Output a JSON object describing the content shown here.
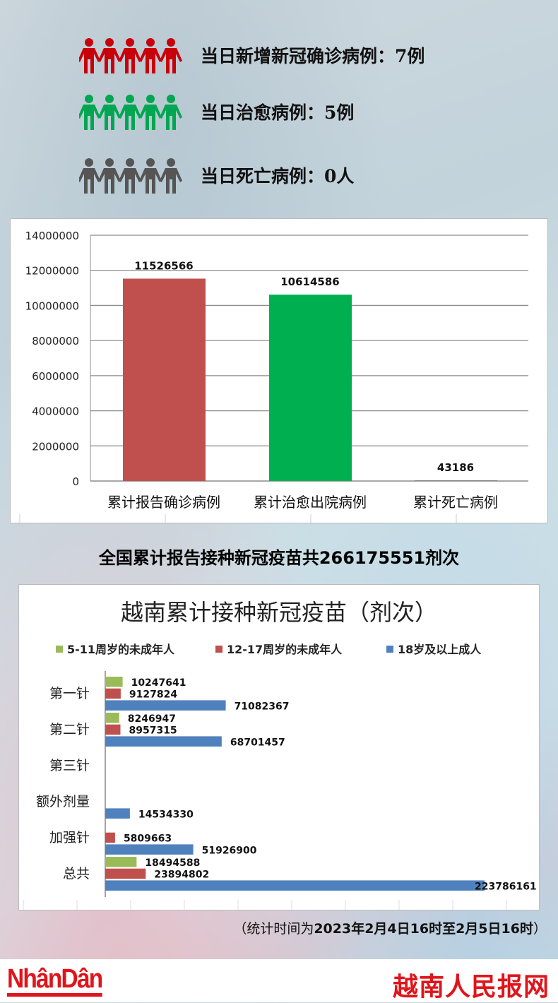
{
  "daily": [
    {
      "label": "当日新增新冠确诊病例：7例",
      "color": "#c8000a",
      "icon": "person-group-icon"
    },
    {
      "label": "当日治愈病例：5例",
      "color": "#00a651",
      "icon": "person-group-icon"
    },
    {
      "label": "当日死亡病例：0人",
      "color": "#555555",
      "icon": "person-group-icon"
    }
  ],
  "chart_data": [
    {
      "type": "bar",
      "categories": [
        "累计报告确诊病例",
        "累计治愈出院病例",
        "累计死亡病例"
      ],
      "values": [
        11526566,
        10614586,
        43186
      ],
      "colors": [
        "#c0504d",
        "#00b050",
        "#7f7f7f"
      ],
      "ylim": [
        0,
        14000000
      ],
      "yticks": [
        "0",
        "2000000",
        "4000000",
        "6000000",
        "8000000",
        "10000000",
        "12000000",
        "14000000"
      ],
      "data_labels": [
        "11526566",
        "10614586",
        "43186"
      ],
      "grid": true
    },
    {
      "type": "bar",
      "orientation": "horizontal",
      "title": "越南累计接种新冠疫苗（剂次）",
      "legend_position": "top",
      "categories": [
        "第一针",
        "第二针",
        "第三针",
        "额外剂量",
        "加强针",
        "总共"
      ],
      "series": [
        {
          "name": "5-11周岁的未成年人",
          "color": "#9bbb59",
          "values": [
            10247641,
            8246947,
            null,
            null,
            null,
            18494588
          ]
        },
        {
          "name": "12-17周岁的未成年人",
          "color": "#c0504d",
          "values": [
            9127824,
            8957315,
            null,
            null,
            5809663,
            23894802
          ]
        },
        {
          "name": "18岁及以上成人",
          "color": "#4f81bd",
          "values": [
            71082367,
            68701457,
            null,
            14534330,
            51926900,
            223786161
          ]
        }
      ]
    }
  ],
  "vaccine_total": "全国累计报告接种新冠疫苗共266175551剂次",
  "note": {
    "prefix": "（统计时间为",
    "bold": "2023年2月4日16时至2月5日16时",
    "suffix": "）"
  },
  "footer": {
    "logo": "NhânDân",
    "brand": "越南人民报网"
  }
}
